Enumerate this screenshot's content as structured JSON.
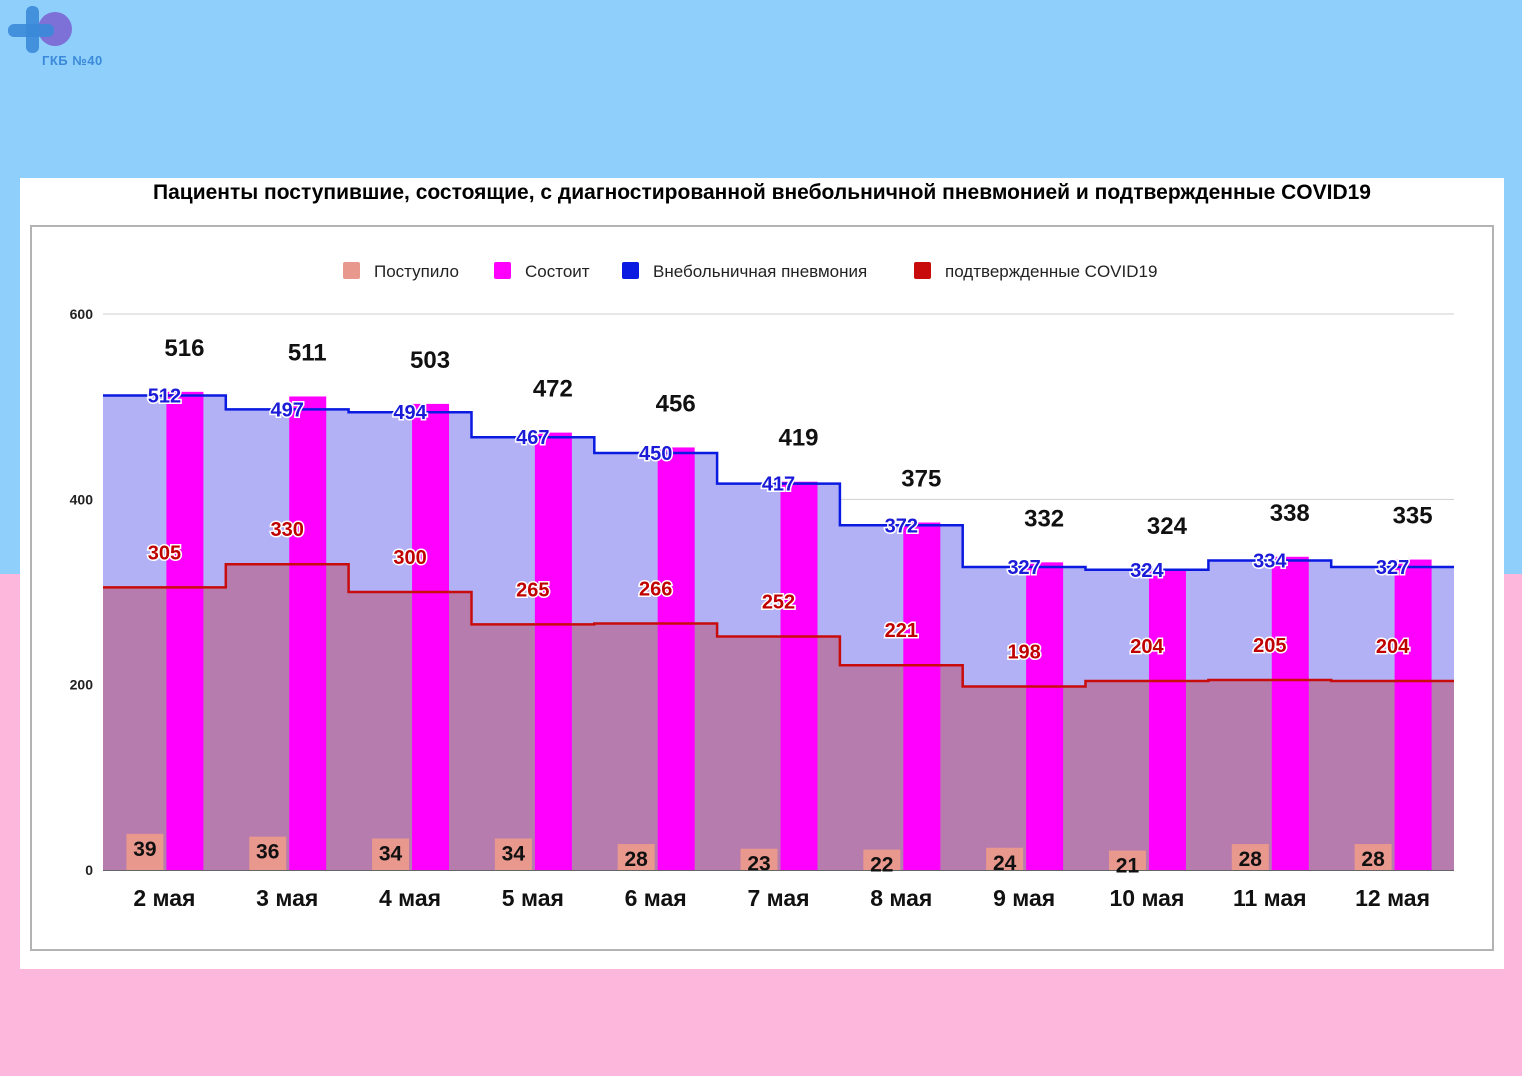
{
  "logo": {
    "text": "ГКБ №40",
    "icon": "hospital-40-logo-icon"
  },
  "chart_data": {
    "type": "bar",
    "title": "Пациенты поступившие, состоящие, с диагностированной внебольничной пневмонией и подтвержденные COVID19",
    "categories": [
      "2 мая",
      "3 мая",
      "4 мая",
      "5 мая",
      "6 мая",
      "7 мая",
      "8 мая",
      "9 мая",
      "10 мая",
      "11 мая",
      "12 мая"
    ],
    "series": [
      {
        "name": "Поступило",
        "kind": "bar",
        "color": "#e8988d",
        "values": [
          39,
          36,
          34,
          34,
          28,
          23,
          22,
          24,
          21,
          28,
          28
        ]
      },
      {
        "name": "Состоит",
        "kind": "bar",
        "color": "#ff00ff",
        "values": [
          516,
          511,
          503,
          472,
          456,
          419,
          375,
          332,
          324,
          338,
          335
        ]
      },
      {
        "name": "Внебольничная пневмония",
        "kind": "stepped-area",
        "color": "#0a1ae0",
        "values": [
          512,
          497,
          494,
          467,
          450,
          417,
          372,
          327,
          324,
          334,
          327
        ]
      },
      {
        "name": "подтвержденные COVID19",
        "kind": "stepped-area",
        "color": "#c80c0c",
        "values": [
          305,
          330,
          300,
          265,
          266,
          252,
          221,
          198,
          204,
          205,
          204
        ]
      }
    ],
    "yticks": [
      0,
      200,
      400,
      600
    ],
    "ylim": [
      0,
      600
    ],
    "legend_position": "top",
    "grid": true
  }
}
